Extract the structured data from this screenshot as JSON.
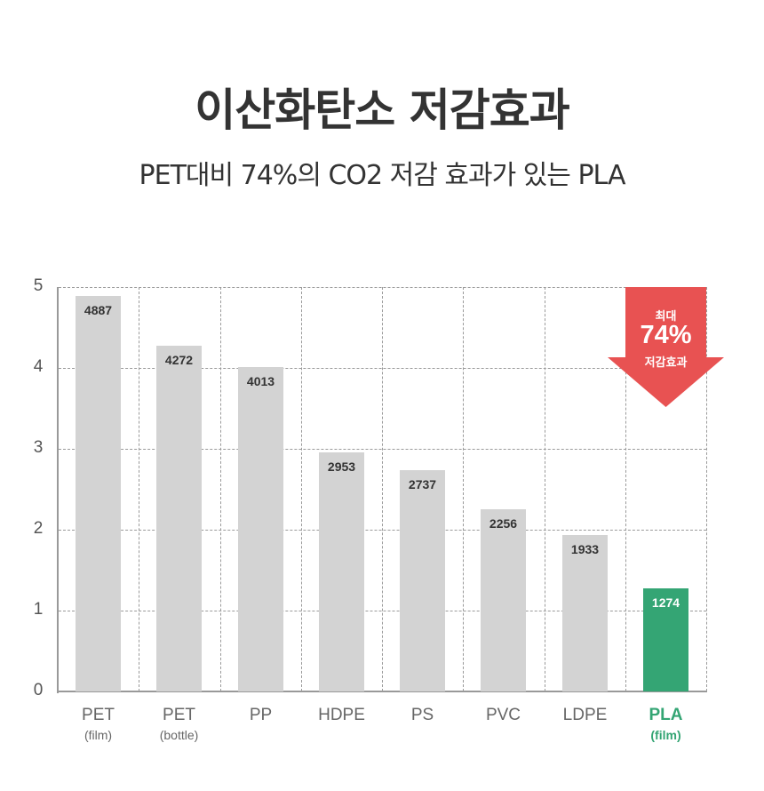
{
  "header": {
    "title": "이산화탄소 저감효과",
    "subtitle": "PET대비 74%의  CO2 저감 효과가 있는 PLA"
  },
  "callout": {
    "line1": "최대",
    "line2": "74%",
    "line3": "저감효과",
    "color": "#e85252",
    "icon": "down-arrow-icon"
  },
  "colors": {
    "bar_default": "#d3d3d3",
    "bar_highlight": "#34a574",
    "text": "#333333",
    "grid": "#9a9a9a"
  },
  "chart_data": {
    "type": "bar",
    "title": "이산화탄소 저감효과",
    "subtitle": "PET대비 74%의  CO2 저감 효과가 있는 PLA",
    "categories": [
      "PET (film)",
      "PET (bottle)",
      "PP",
      "HDPE",
      "PS",
      "PVC",
      "LDPE",
      "PLA (film)"
    ],
    "category_labels": [
      {
        "main": "PET",
        "sub": "(film)"
      },
      {
        "main": "PET",
        "sub": "(bottle)"
      },
      {
        "main": "PP",
        "sub": ""
      },
      {
        "main": "HDPE",
        "sub": ""
      },
      {
        "main": "PS",
        "sub": ""
      },
      {
        "main": "PVC",
        "sub": ""
      },
      {
        "main": "LDPE",
        "sub": ""
      },
      {
        "main": "PLA",
        "sub": "(film)"
      }
    ],
    "values": [
      4887,
      4272,
      4013,
      2953,
      2737,
      2256,
      1933,
      1274
    ],
    "value_labels": [
      "4887",
      "4272",
      "4013",
      "2953",
      "2737",
      "2256",
      "1933",
      "1274"
    ],
    "highlight_index": 7,
    "yticks": [
      "0",
      "1",
      "2",
      "3",
      "4",
      "5"
    ],
    "ylim": [
      0,
      5
    ],
    "y_scale_note": "axis in thousands",
    "xlabel": "",
    "ylabel": "",
    "grid": true,
    "annotation": "최대 74% 저감효과"
  }
}
